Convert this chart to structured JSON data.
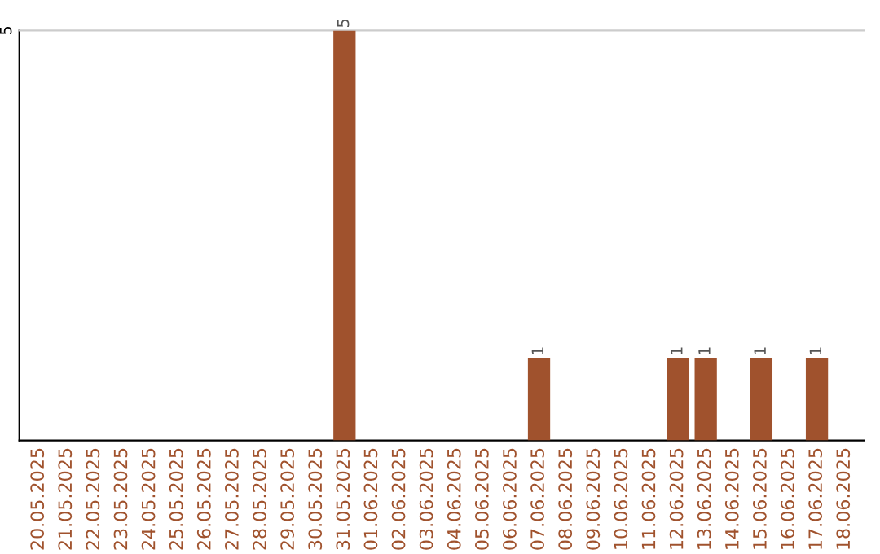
{
  "chart_data": {
    "type": "bar",
    "categories": [
      "20.05.2025",
      "21.05.2025",
      "22.05.2025",
      "23.05.2025",
      "24.05.2025",
      "25.05.2025",
      "26.05.2025",
      "27.05.2025",
      "28.05.2025",
      "29.05.2025",
      "30.05.2025",
      "31.05.2025",
      "01.06.2025",
      "02.06.2025",
      "03.06.2025",
      "04.06.2025",
      "05.06.2025",
      "06.06.2025",
      "07.06.2025",
      "08.06.2025",
      "09.06.2025",
      "10.06.2025",
      "11.06.2025",
      "12.06.2025",
      "13.06.2025",
      "14.06.2025",
      "15.06.2025",
      "16.06.2025",
      "17.06.2025",
      "18.06.2025"
    ],
    "values": [
      0,
      0,
      0,
      0,
      0,
      0,
      0,
      0,
      0,
      0,
      0,
      5,
      0,
      0,
      0,
      0,
      0,
      0,
      1,
      0,
      0,
      0,
      0,
      1,
      1,
      0,
      1,
      0,
      1,
      0
    ],
    "value_labels": [
      null,
      null,
      null,
      null,
      null,
      null,
      null,
      null,
      null,
      null,
      null,
      "5",
      null,
      null,
      null,
      null,
      null,
      null,
      "1",
      null,
      null,
      null,
      null,
      "1",
      "1",
      null,
      "1",
      null,
      "1",
      null
    ],
    "color": "#a0522d",
    "ylim": [
      0,
      5
    ],
    "yticks": [
      5
    ]
  }
}
